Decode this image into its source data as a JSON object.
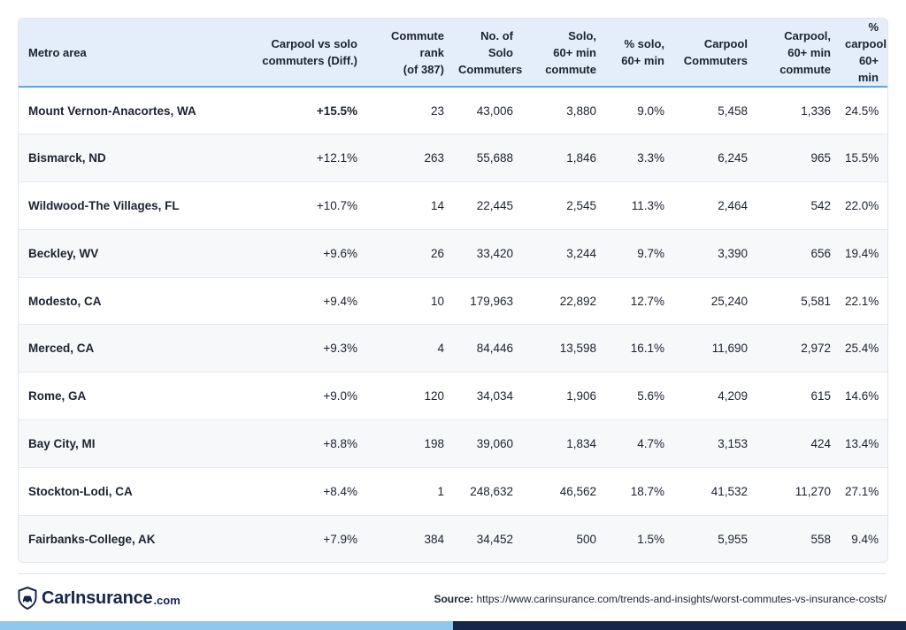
{
  "table": {
    "headers": [
      [
        "Metro area"
      ],
      [
        "Carpool vs solo",
        "commuters (Diff.)"
      ],
      [
        "Commute",
        "rank",
        "(of 387)"
      ],
      [
        "No. of Solo",
        "Commuters"
      ],
      [
        "Solo,",
        "60+ min",
        "commute"
      ],
      [
        "% solo,",
        "60+ min"
      ],
      [
        "Carpool",
        "Commuters"
      ],
      [
        "Carpool,",
        "60+ min",
        "commute"
      ],
      [
        "%",
        "carpool,",
        "60+ min"
      ]
    ],
    "rows": [
      [
        "Mount Vernon-Anacortes, WA",
        "+15.5%",
        "23",
        "43,006",
        "3,880",
        "9.0%",
        "5,458",
        "1,336",
        "24.5%"
      ],
      [
        "Bismarck, ND",
        "+12.1%",
        "263",
        "55,688",
        "1,846",
        "3.3%",
        "6,245",
        "965",
        "15.5%"
      ],
      [
        "Wildwood-The Villages, FL",
        "+10.7%",
        "14",
        "22,445",
        "2,545",
        "11.3%",
        "2,464",
        "542",
        "22.0%"
      ],
      [
        "Beckley, WV",
        "+9.6%",
        "26",
        "33,420",
        "3,244",
        "9.7%",
        "3,390",
        "656",
        "19.4%"
      ],
      [
        "Modesto, CA",
        "+9.4%",
        "10",
        "179,963",
        "22,892",
        "12.7%",
        "25,240",
        "5,581",
        "22.1%"
      ],
      [
        "Merced, CA",
        "+9.3%",
        "4",
        "84,446",
        "13,598",
        "16.1%",
        "11,690",
        "2,972",
        "25.4%"
      ],
      [
        "Rome, GA",
        "+9.0%",
        "120",
        "34,034",
        "1,906",
        "5.6%",
        "4,209",
        "615",
        "14.6%"
      ],
      [
        "Bay City, MI",
        "+8.8%",
        "198",
        "39,060",
        "1,834",
        "4.7%",
        "3,153",
        "424",
        "13.4%"
      ],
      [
        "Stockton-Lodi, CA",
        "+8.4%",
        "1",
        "248,632",
        "46,562",
        "18.7%",
        "41,532",
        "11,270",
        "27.1%"
      ],
      [
        "Fairbanks-College, AK",
        "+7.9%",
        "384",
        "34,452",
        "500",
        "1.5%",
        "5,955",
        "558",
        "9.4%"
      ]
    ]
  },
  "footer": {
    "logo_name": "CarInsurance",
    "logo_suffix": ".com",
    "logo_icon": "shield-car-icon",
    "source_label": "Source:",
    "source_url": "https://www.carinsurance.com/trends-and-insights/worst-commutes-vs-insurance-costs/"
  },
  "colors": {
    "header_bg": "#e3eefa",
    "header_rule": "#5aa7de",
    "brand_navy": "#16264a",
    "brand_light_blue": "#8fc6ec"
  }
}
